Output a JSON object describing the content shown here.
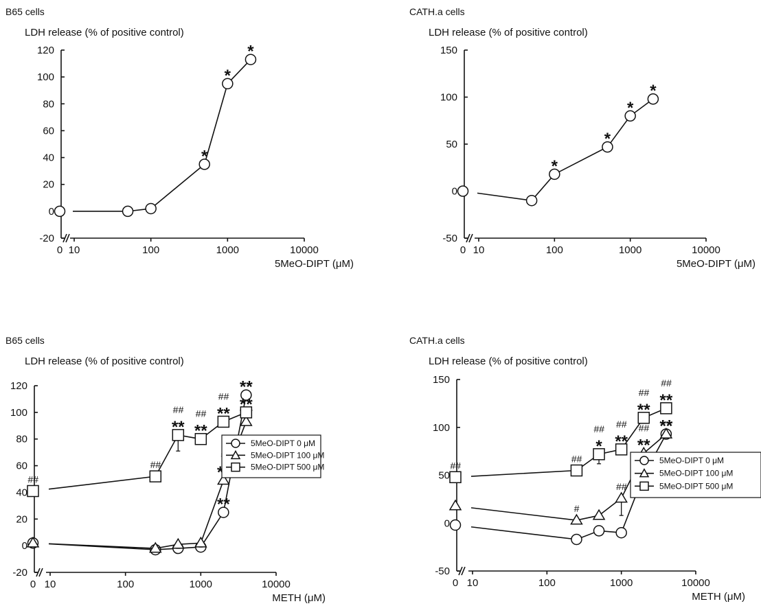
{
  "chart_data": [
    {
      "type": "line",
      "cell_label": "B65 cells",
      "ylabel": "LDH release (% of positive control)",
      "xlabel": "5MeO-DIPT (μM)",
      "xscale": "log",
      "xticks": [
        "0",
        "10",
        "100",
        "1000",
        "10000"
      ],
      "yticks": [
        "-20",
        "0",
        "20",
        "40",
        "60",
        "80",
        "100",
        "120"
      ],
      "ylim": [
        -20,
        120
      ],
      "series": [
        {
          "marker": "circle",
          "x": [
            0,
            50,
            100,
            500,
            1000,
            2000
          ],
          "y": [
            0,
            0,
            2,
            35,
            95,
            113
          ],
          "err": [
            0,
            0,
            0,
            0,
            0,
            0
          ],
          "sig": [
            "",
            "",
            "",
            "*",
            "*",
            "*"
          ]
        }
      ]
    },
    {
      "type": "line",
      "cell_label": "CATH.a cells",
      "ylabel": "LDH release (% of positive control)",
      "xlabel": "5MeO-DIPT (μM)",
      "xscale": "log",
      "xticks": [
        "0",
        "10",
        "100",
        "1000",
        "10000"
      ],
      "yticks": [
        "-50",
        "0",
        "50",
        "100",
        "150"
      ],
      "ylim": [
        -50,
        150
      ],
      "series": [
        {
          "marker": "circle",
          "x": [
            0,
            50,
            100,
            500,
            1000,
            2000
          ],
          "y": [
            0,
            -10,
            18,
            47,
            80,
            98
          ],
          "err": [
            0,
            0,
            0,
            0,
            0,
            0
          ],
          "sig": [
            "",
            "",
            "*",
            "*",
            "*",
            "*"
          ]
        }
      ]
    },
    {
      "type": "line",
      "cell_label": "B65 cells",
      "ylabel": "LDH release (% of positive control)",
      "xlabel": "METH (μM)",
      "xscale": "log",
      "xticks": [
        "0",
        "10",
        "100",
        "1000",
        "10000"
      ],
      "yticks": [
        "-20",
        "0",
        "20",
        "40",
        "60",
        "80",
        "100",
        "120"
      ],
      "ylim": [
        -20,
        120
      ],
      "legend_position": "right",
      "series": [
        {
          "name": "5MeO-DIPT 0 μM",
          "marker": "circle",
          "x": [
            0,
            250,
            500,
            1000,
            2000,
            4000
          ],
          "y": [
            2,
            -3,
            -2,
            -1,
            25,
            113
          ],
          "err": [
            0,
            0,
            3,
            3,
            0,
            0
          ],
          "sig": [
            "",
            "",
            "",
            "",
            "**",
            "**"
          ]
        },
        {
          "name": "5MeO-DIPT 100 μM",
          "marker": "triangle",
          "x": [
            0,
            250,
            500,
            1000,
            2000,
            4000
          ],
          "y": [
            2,
            -2,
            1,
            2,
            49,
            93
          ],
          "err": [
            0,
            0,
            3,
            3,
            0,
            0
          ],
          "sig": [
            "",
            "",
            "",
            "",
            "# **",
            "**"
          ]
        },
        {
          "name": "5MeO-DIPT 500 μM",
          "marker": "square",
          "x": [
            0,
            250,
            500,
            1000,
            2000,
            4000
          ],
          "y": [
            41,
            52,
            83,
            80,
            93,
            100
          ],
          "err": [
            0,
            0,
            12,
            0,
            0,
            0
          ],
          "sig": [
            "##",
            "##",
            "## **",
            "## **",
            "## **",
            "**"
          ]
        }
      ]
    },
    {
      "type": "line",
      "cell_label": "CATH.a cells",
      "ylabel": "LDH release (% of positive control)",
      "xlabel": "METH (μM)",
      "xscale": "log",
      "xticks": [
        "0",
        "10",
        "100",
        "1000",
        "10000"
      ],
      "yticks": [
        "-50",
        "0",
        "50",
        "100",
        "150"
      ],
      "ylim": [
        -50,
        150
      ],
      "legend_position": "right",
      "series": [
        {
          "name": "5MeO-DIPT 0 μM",
          "marker": "circle",
          "x": [
            0,
            250,
            500,
            1000,
            2000,
            4000
          ],
          "y": [
            -2,
            -17,
            -8,
            -10,
            50,
            93
          ],
          "err": [
            0,
            0,
            0,
            0,
            0,
            0
          ],
          "sig": [
            "",
            "",
            "",
            "",
            "**",
            "**"
          ]
        },
        {
          "name": "5MeO-DIPT 100 μM",
          "marker": "triangle",
          "x": [
            0,
            250,
            500,
            1000,
            2000,
            4000
          ],
          "y": [
            18,
            3,
            8,
            26,
            73,
            93
          ],
          "err": [
            0,
            0,
            0,
            18,
            0,
            0
          ],
          "sig": [
            "",
            "#",
            "",
            "##",
            "## **",
            "**"
          ]
        },
        {
          "name": "5MeO-DIPT 500 μM",
          "marker": "square",
          "x": [
            0,
            250,
            500,
            1000,
            2000,
            4000
          ],
          "y": [
            48,
            55,
            72,
            77,
            110,
            120
          ],
          "err": [
            0,
            0,
            10,
            0,
            0,
            0
          ],
          "sig": [
            "##",
            "##",
            "## *",
            "## **",
            "## **",
            "## **"
          ]
        }
      ]
    }
  ]
}
